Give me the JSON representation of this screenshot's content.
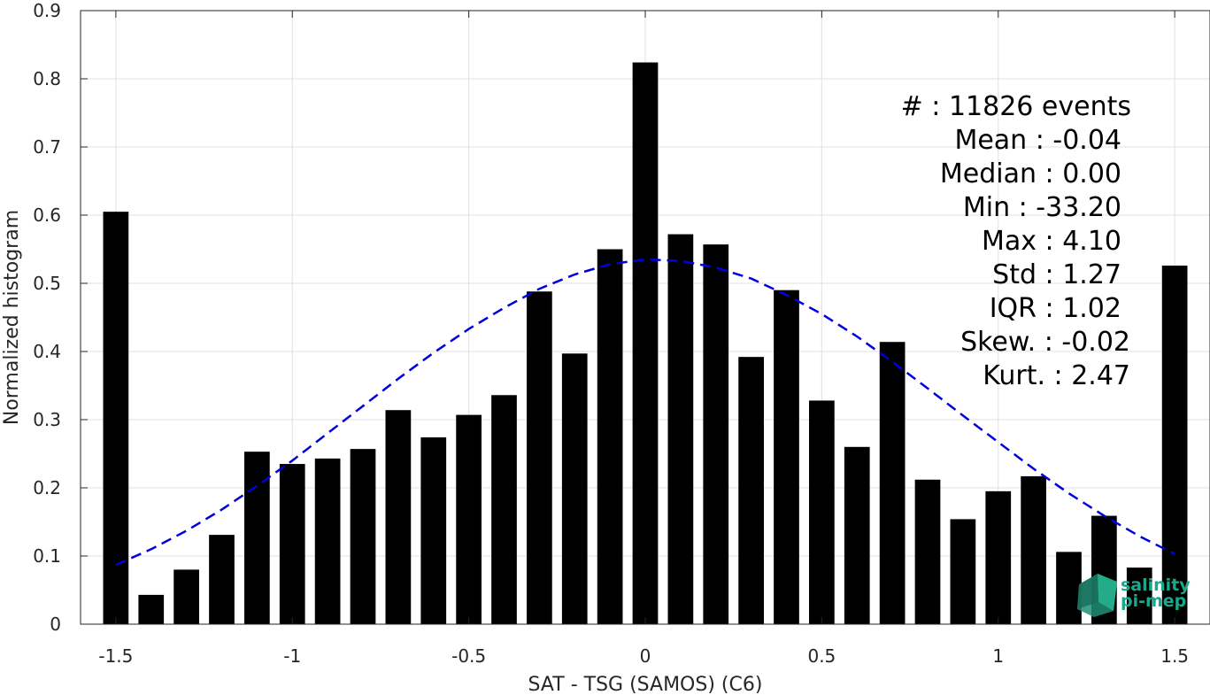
{
  "chart_data": {
    "type": "bar",
    "xlabel": "SAT - TSG (SAMOS) (C6)",
    "ylabel": "Normalized histogram",
    "xlim": [
      -1.6,
      1.6
    ],
    "ylim": [
      0,
      0.9
    ],
    "xticks": [
      "-1.5",
      "-1",
      "-0.5",
      "0",
      "0.5",
      "1",
      "1.5"
    ],
    "yticks": [
      "0",
      "0.1",
      "0.2",
      "0.3",
      "0.4",
      "0.5",
      "0.6",
      "0.7",
      "0.8",
      "0.9"
    ],
    "grid": true,
    "bars": {
      "x": [
        -1.5,
        -1.4,
        -1.3,
        -1.2,
        -1.1,
        -1.0,
        -0.9,
        -0.8,
        -0.7,
        -0.6,
        -0.5,
        -0.4,
        -0.3,
        -0.2,
        -0.1,
        0.0,
        0.1,
        0.2,
        0.3,
        0.4,
        0.5,
        0.6,
        0.7,
        0.8,
        0.9,
        1.0,
        1.1,
        1.2,
        1.3,
        1.4,
        1.5
      ],
      "values": [
        0.605,
        0.043,
        0.08,
        0.131,
        0.253,
        0.235,
        0.243,
        0.257,
        0.314,
        0.274,
        0.307,
        0.336,
        0.488,
        0.397,
        0.55,
        0.824,
        0.572,
        0.557,
        0.392,
        0.49,
        0.328,
        0.26,
        0.414,
        0.212,
        0.154,
        0.195,
        0.217,
        0.106,
        0.159,
        0.083,
        0.526
      ],
      "color": "#000000"
    },
    "fit": {
      "style": "dashed",
      "color": "#0000dd",
      "x": [
        -1.5,
        -1.4,
        -1.3,
        -1.2,
        -1.1,
        -1.0,
        -0.9,
        -0.8,
        -0.7,
        -0.6,
        -0.5,
        -0.4,
        -0.3,
        -0.2,
        -0.1,
        0.0,
        0.1,
        0.2,
        0.3,
        0.4,
        0.5,
        0.6,
        0.7,
        0.8,
        0.9,
        1.0,
        1.1,
        1.2,
        1.3,
        1.4,
        1.5
      ],
      "values": [
        0.087,
        0.11,
        0.137,
        0.168,
        0.203,
        0.24,
        0.28,
        0.32,
        0.36,
        0.398,
        0.433,
        0.464,
        0.492,
        0.513,
        0.528,
        0.535,
        0.533,
        0.523,
        0.507,
        0.483,
        0.455,
        0.422,
        0.385,
        0.346,
        0.306,
        0.267,
        0.228,
        0.192,
        0.159,
        0.129,
        0.103
      ]
    },
    "annotations": [
      "#  : 11826 events",
      "Mean : -0.04",
      "Median : 0.00",
      "Min : -33.20",
      "Max : 4.10",
      "Std : 1.27",
      "IQR : 1.02",
      "Skew. : -0.02",
      "Kurt. : 2.47"
    ]
  },
  "logo": {
    "line1": "salinity",
    "line2": "pi-mep",
    "color": "#1aa88a"
  }
}
